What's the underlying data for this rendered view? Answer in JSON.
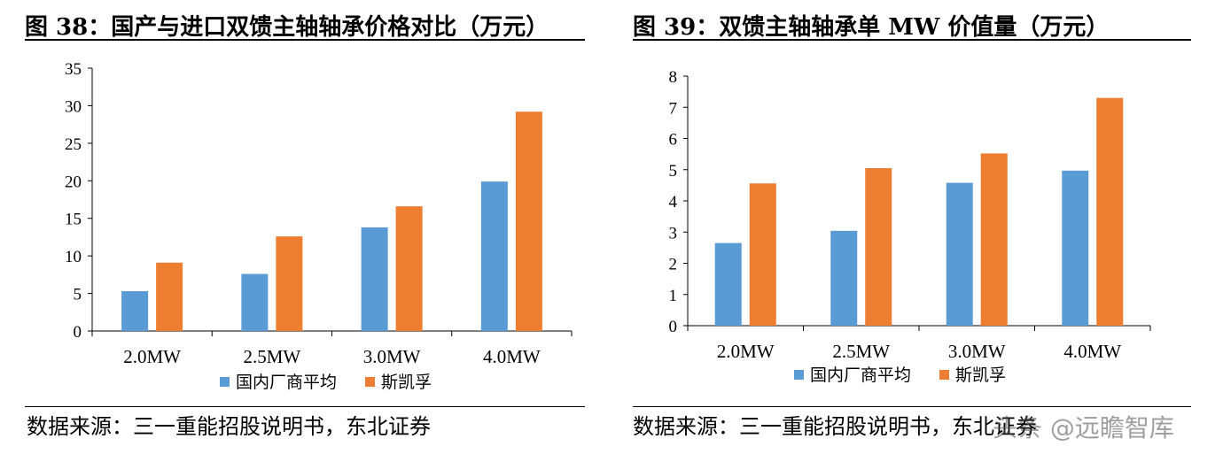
{
  "colors": {
    "series1": "#5B9BD5",
    "series2": "#ED7D31",
    "axis": "#000000"
  },
  "panels": [
    {
      "title": "图 38：国产与进口双馈主轴轴承价格对比（万元）",
      "source": "数据来源：三一重能招股说明书，东北证券"
    },
    {
      "title": "图 39：双馈主轴轴承单 MW 价值量（万元）",
      "source": "数据来源：三一重能招股说明书，东北证券"
    }
  ],
  "watermark": "头条 @远瞻智库",
  "chart_data": [
    {
      "type": "bar",
      "categories": [
        "2.0MW",
        "2.5MW",
        "3.0MW",
        "4.0MW"
      ],
      "series": [
        {
          "name": "国内厂商平均",
          "values": [
            5.3,
            7.6,
            13.8,
            19.9
          ]
        },
        {
          "name": "斯凯孚",
          "values": [
            9.1,
            12.6,
            16.6,
            29.2
          ]
        }
      ],
      "ylim": [
        0,
        35
      ],
      "yticks": [
        0,
        5,
        10,
        15,
        20,
        25,
        30,
        35
      ],
      "legend": "bottom"
    },
    {
      "type": "bar",
      "categories": [
        "2.0MW",
        "2.5MW",
        "3.0MW",
        "4.0MW"
      ],
      "series": [
        {
          "name": "国内厂商平均",
          "values": [
            2.65,
            3.04,
            4.58,
            4.97
          ]
        },
        {
          "name": "斯凯孚",
          "values": [
            4.56,
            5.05,
            5.52,
            7.3
          ]
        }
      ],
      "ylim": [
        0,
        8
      ],
      "yticks": [
        0,
        1,
        2,
        3,
        4,
        5,
        6,
        7,
        8
      ],
      "legend": "bottom"
    }
  ]
}
